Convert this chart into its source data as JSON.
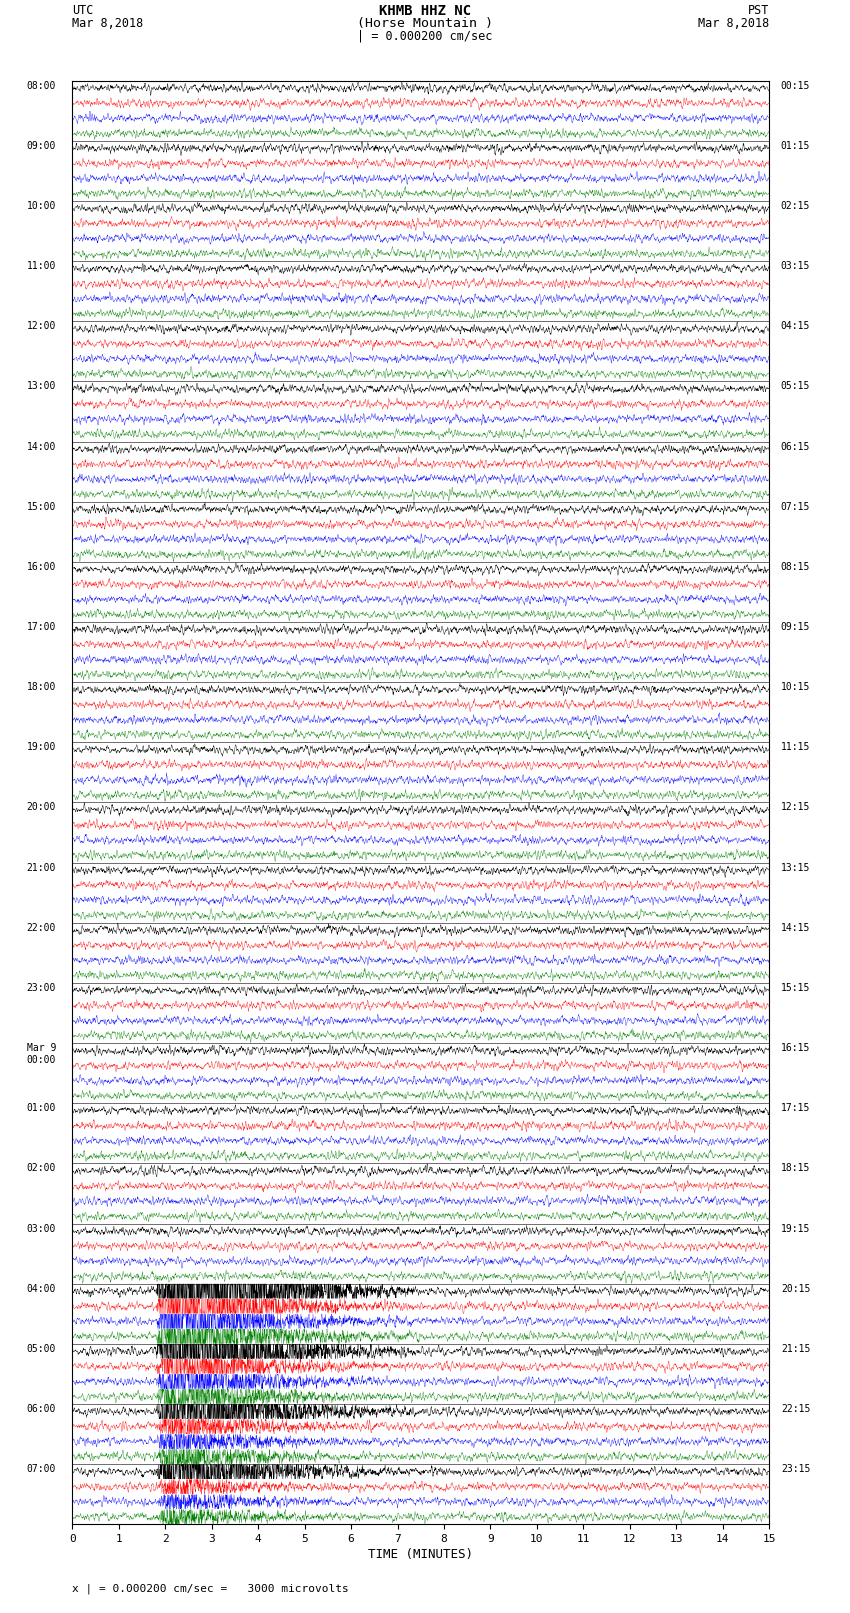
{
  "title_line1": "KHMB HHZ NC",
  "title_line2": "(Horse Mountain )",
  "title_line3": "| = 0.000200 cm/sec",
  "left_header_line1": "UTC",
  "left_header_line2": "Mar 8,2018",
  "right_header_line1": "PST",
  "right_header_line2": "Mar 8,2018",
  "footer_note": "x | = 0.000200 cm/sec =   3000 microvolts",
  "xlabel": "TIME (MINUTES)",
  "left_times": [
    "08:00",
    "09:00",
    "10:00",
    "11:00",
    "12:00",
    "13:00",
    "14:00",
    "15:00",
    "16:00",
    "17:00",
    "18:00",
    "19:00",
    "20:00",
    "21:00",
    "22:00",
    "23:00",
    "Mar 9\n00:00",
    "01:00",
    "02:00",
    "03:00",
    "04:00",
    "05:00",
    "06:00",
    "07:00"
  ],
  "right_times": [
    "00:15",
    "01:15",
    "02:15",
    "03:15",
    "04:15",
    "05:15",
    "06:15",
    "07:15",
    "08:15",
    "09:15",
    "10:15",
    "11:15",
    "12:15",
    "13:15",
    "14:15",
    "15:15",
    "16:15",
    "17:15",
    "18:15",
    "19:15",
    "20:15",
    "21:15",
    "22:15",
    "23:15"
  ],
  "num_slots": 24,
  "sub_traces": 4,
  "minutes_per_trace": 15,
  "colors_per_slot": [
    "black",
    "red",
    "blue",
    "green"
  ],
  "bg_color": "white",
  "base_amplitude": 0.28,
  "eq_slot": 20,
  "eq_slot2": 21,
  "eq_slot3": 22,
  "eq_slot4": 23,
  "eq_minute": 2.1,
  "eq_amplitude_black": 6.0,
  "eq_amplitude_color": 2.5,
  "sample_rate": 3000
}
